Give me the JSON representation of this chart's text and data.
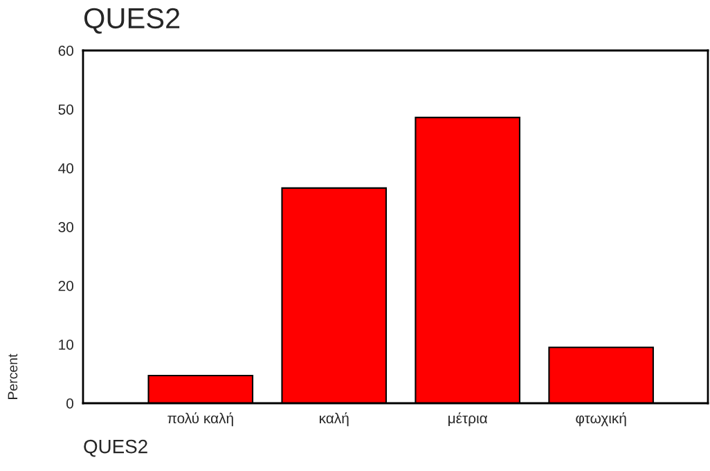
{
  "chart_data": {
    "type": "bar",
    "title": "QUES2",
    "xlabel": "QUES2",
    "ylabel": "Percent",
    "categories": [
      "πολύ καλή",
      "καλή",
      "μέτρια",
      "φτωχική"
    ],
    "values": [
      4.7,
      36.6,
      48.6,
      9.5
    ],
    "color": "#ff0000",
    "ylim": [
      0,
      60
    ],
    "yticks": [
      0,
      10,
      20,
      30,
      40,
      50,
      60
    ],
    "grid": false,
    "legend": false
  }
}
